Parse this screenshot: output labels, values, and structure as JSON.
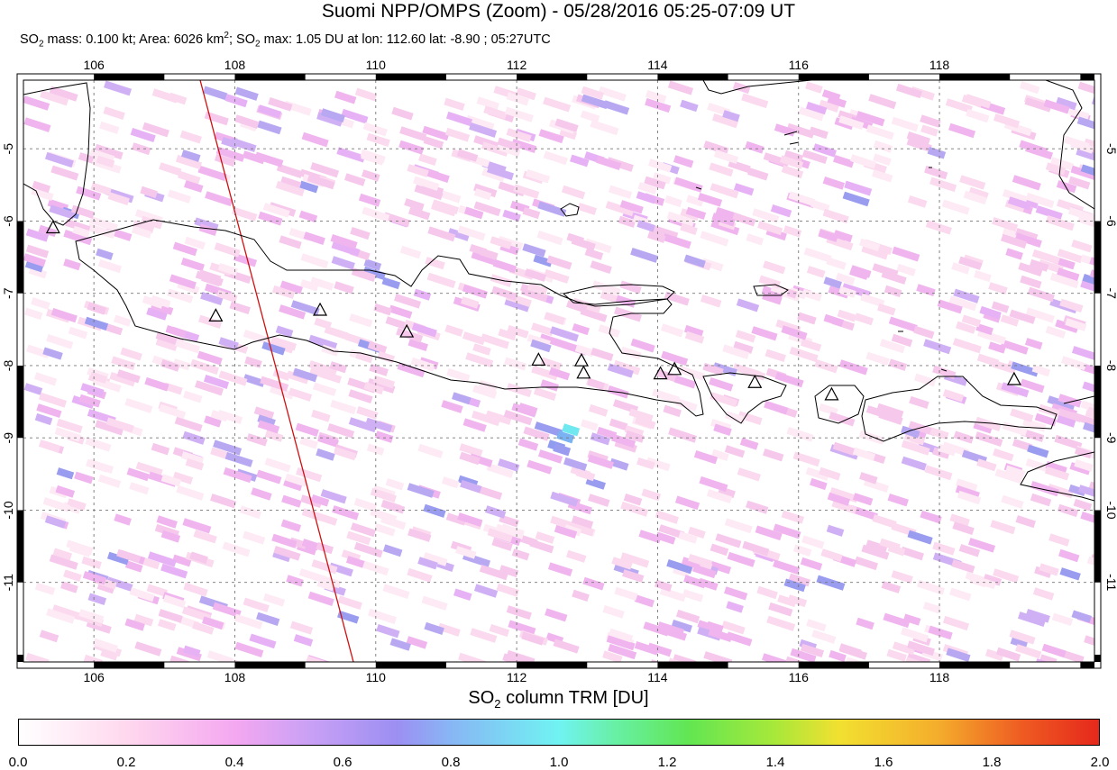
{
  "title": "Suomi NPP/OMPS (Zoom) - 05/28/2016 05:25-07:09 UT",
  "subtitle": {
    "p1": "SO",
    "s1": "2",
    "p2": " mass: 0.100 kt; Area: 6026 km",
    "sup": "2",
    "p3": "; SO",
    "s2": "2",
    "p4": " max: 1.05 DU at lon: 112.60 lat: -8.90 ; 05:27UTC"
  },
  "map": {
    "lon_min": 105,
    "lon_max": 120.2,
    "lat_min": -12.1,
    "lat_max": -4.05,
    "lon_ticks": [
      "106",
      "108",
      "110",
      "112",
      "114",
      "116",
      "118"
    ],
    "lat_ticks": [
      "-5",
      "-6",
      "-7",
      "-8",
      "-9",
      "-10",
      "-11"
    ],
    "volcanoes": [
      {
        "lon": 105.42,
        "lat": -6.1
      },
      {
        "lon": 107.73,
        "lat": -7.32
      },
      {
        "lon": 109.21,
        "lat": -7.24
      },
      {
        "lon": 110.44,
        "lat": -7.54
      },
      {
        "lon": 112.31,
        "lat": -7.93
      },
      {
        "lon": 112.92,
        "lat": -7.94
      },
      {
        "lon": 112.95,
        "lat": -8.11
      },
      {
        "lon": 114.04,
        "lat": -8.12
      },
      {
        "lon": 114.24,
        "lat": -8.06
      },
      {
        "lon": 115.38,
        "lat": -8.24
      },
      {
        "lon": 116.47,
        "lat": -8.41
      },
      {
        "lon": 119.06,
        "lat": -8.2
      }
    ],
    "max_point": {
      "lon": 112.6,
      "lat": -8.9
    }
  },
  "colorbar": {
    "title_a": "SO",
    "title_sub": "2",
    "title_b": " column TRM [DU]",
    "ticks": [
      "0.0",
      "0.2",
      "0.4",
      "0.6",
      "0.8",
      "1.0",
      "1.2",
      "1.4",
      "1.6",
      "1.8",
      "2.0"
    ]
  }
}
